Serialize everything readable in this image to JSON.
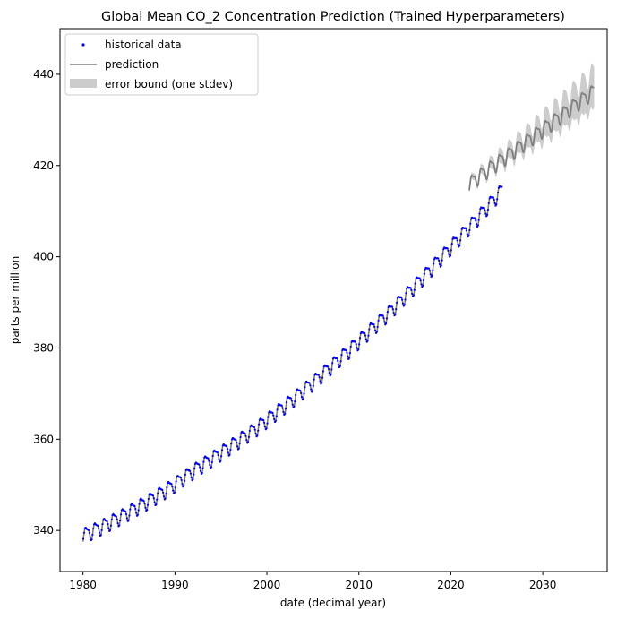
{
  "chart_data": {
    "type": "scatter",
    "title": "Global Mean CO_2 Concentration Prediction (Trained Hyperparameters)",
    "xlabel": "date (decimal year)",
    "ylabel": "parts per million",
    "xlim": [
      1977.5,
      2037.0
    ],
    "ylim": [
      331.0,
      450.0
    ],
    "xticks": [
      1980,
      1990,
      2000,
      2010,
      2020,
      2030
    ],
    "yticks": [
      340,
      360,
      380,
      400,
      420,
      440
    ],
    "legend_position": "top-left",
    "legend": [
      {
        "label": "historical data",
        "kind": "marker"
      },
      {
        "label": "prediction",
        "kind": "line"
      },
      {
        "label": "error bound (one stdev)",
        "kind": "patch"
      }
    ],
    "colors": {
      "data": "#0000ff",
      "prediction": "#808080",
      "band": "#cccccc"
    },
    "series": [
      {
        "name": "historical data",
        "annual_start_year": 1980,
        "annual_mean_ppm": [
          339.0,
          339.9,
          340.9,
          341.9,
          343.0,
          344.1,
          345.3,
          346.4,
          347.6,
          348.9,
          350.2,
          351.7,
          353.1,
          354.5,
          355.8,
          357.1,
          358.5,
          359.9,
          361.3,
          362.7,
          364.3,
          365.9,
          367.5,
          369.1,
          370.8,
          372.5,
          374.3,
          376.1,
          377.9,
          379.7,
          381.6,
          383.5,
          385.4,
          387.3,
          389.3,
          391.4,
          393.5,
          395.6,
          397.8,
          400.0,
          402.2,
          404.4,
          406.6,
          408.8,
          411.1,
          413.4
        ],
        "seasonal_amplitude_ppm": 3.0
      },
      {
        "name": "prediction",
        "annual_start_year": 2022,
        "annual_mean_ppm": [
          416.0,
          417.6,
          419.1,
          420.6,
          422.0,
          423.5,
          425.0,
          426.5,
          428.0,
          429.5,
          431.0,
          432.6,
          434.1,
          435.6
        ],
        "end_year": 2035.6,
        "seasonal_amplitude_ppm": 3.0
      },
      {
        "name": "error bound (one stdev)",
        "stdev_ppm_start": 0.6,
        "stdev_ppm_end": 5.0
      }
    ]
  }
}
